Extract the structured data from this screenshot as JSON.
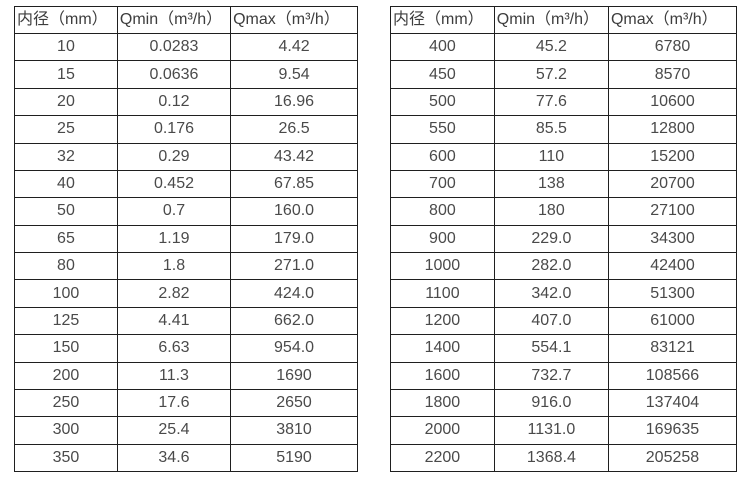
{
  "chart_data": [
    {
      "type": "table",
      "name": "flow-range-table-small-diameters",
      "columns": [
        "内径（mm）",
        "Qmin（m³/h）",
        "Qmax（m³/h）"
      ],
      "rows": [
        [
          "10",
          "0.0283",
          "4.42"
        ],
        [
          "15",
          "0.0636",
          "9.54"
        ],
        [
          "20",
          "0.12",
          "16.96"
        ],
        [
          "25",
          "0.176",
          "26.5"
        ],
        [
          "32",
          "0.29",
          "43.42"
        ],
        [
          "40",
          "0.452",
          "67.85"
        ],
        [
          "50",
          "0.7",
          "160.0"
        ],
        [
          "65",
          "1.19",
          "179.0"
        ],
        [
          "80",
          "1.8",
          "271.0"
        ],
        [
          "100",
          "2.82",
          "424.0"
        ],
        [
          "125",
          "4.41",
          "662.0"
        ],
        [
          "150",
          "6.63",
          "954.0"
        ],
        [
          "200",
          "11.3",
          "1690"
        ],
        [
          "250",
          "17.6",
          "2650"
        ],
        [
          "300",
          "25.4",
          "3810"
        ],
        [
          "350",
          "34.6",
          "5190"
        ]
      ]
    },
    {
      "type": "table",
      "name": "flow-range-table-large-diameters",
      "columns": [
        "内径（mm）",
        "Qmin（m³/h）",
        "Qmax（m³/h）"
      ],
      "rows": [
        [
          "400",
          "45.2",
          "6780"
        ],
        [
          "450",
          "57.2",
          "8570"
        ],
        [
          "500",
          "77.6",
          "10600"
        ],
        [
          "550",
          "85.5",
          "12800"
        ],
        [
          "600",
          "110",
          "15200"
        ],
        [
          "700",
          "138",
          "20700"
        ],
        [
          "800",
          "180",
          "27100"
        ],
        [
          "900",
          "229.0",
          "34300"
        ],
        [
          "1000",
          "282.0",
          "42400"
        ],
        [
          "1100",
          "342.0",
          "51300"
        ],
        [
          "1200",
          "407.0",
          "61000"
        ],
        [
          "1400",
          "554.1",
          "83121"
        ],
        [
          "1600",
          "732.7",
          "108566"
        ],
        [
          "1800",
          "916.0",
          "137404"
        ],
        [
          "2000",
          "1131.0",
          "169635"
        ],
        [
          "2200",
          "1368.4",
          "205258"
        ]
      ]
    }
  ],
  "colors": {
    "border": "#1f1f1f",
    "header_text": "#3d3d3d",
    "cell_text": "#4a4a4a",
    "background": "#ffffff"
  }
}
